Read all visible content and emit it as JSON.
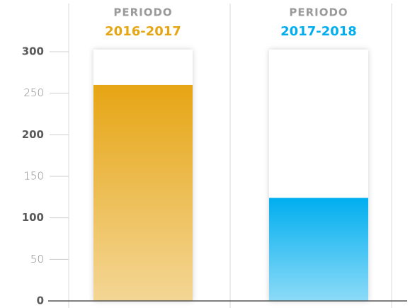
{
  "chart_data": {
    "type": "bar",
    "period_label": "PERIODO",
    "categories": [
      "2016-2017",
      "2017-2018"
    ],
    "values": [
      260,
      124
    ],
    "colors": [
      "#e6a514",
      "#00aeef"
    ],
    "ylim": [
      0,
      300
    ],
    "yticks": [
      0,
      50,
      100,
      150,
      200,
      250,
      300
    ],
    "grid": true
  }
}
